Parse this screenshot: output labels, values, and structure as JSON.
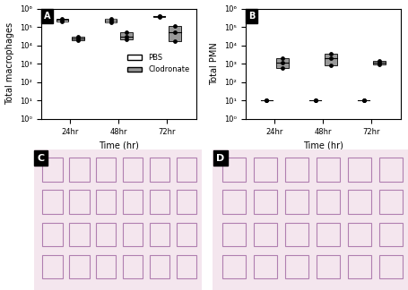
{
  "chart_data": [
    {
      "type": "box",
      "panel_label": "A",
      "x_label": "Time (hr)",
      "y_label": "Total macrophages",
      "categories": [
        "24hr",
        "48hr",
        "72hr"
      ],
      "series": [
        {
          "name": "PBS",
          "color": "#ffffff",
          "values": [
            [
              200000,
              240000,
              270000
            ],
            [
              190000,
              230000,
              280000
            ],
            [
              350000,
              380000,
              400000
            ]
          ]
        },
        {
          "name": "Clodronate",
          "color": "#999999",
          "values": [
            [
              20000,
              25000,
              30000
            ],
            [
              22000,
              30000,
              50000
            ],
            [
              18000,
              55000,
              120000
            ]
          ]
        }
      ],
      "log": "y",
      "ylim": [
        1,
        1000000
      ],
      "yticks": [
        {
          "value": 1,
          "label": "10⁰"
        },
        {
          "value": 10,
          "label": "10¹"
        },
        {
          "value": 100,
          "label": "10²"
        },
        {
          "value": 1000,
          "label": "10³"
        },
        {
          "value": 10000,
          "label": "10⁴"
        },
        {
          "value": 100000,
          "label": "10⁵"
        },
        {
          "value": 1000000,
          "label": "10⁶"
        }
      ],
      "grid": false,
      "legend": "center right"
    },
    {
      "type": "box",
      "panel_label": "B",
      "x_label": "Time (hr)",
      "y_label": "Total PMN",
      "categories": [
        "24hr",
        "48hr",
        "72hr"
      ],
      "series": [
        {
          "color": "#ffffff",
          "values": [
            [
              10,
              10,
              10
            ],
            [
              10,
              10,
              10
            ],
            [
              10,
              10,
              10
            ]
          ]
        },
        {
          "color": "#999999",
          "values": [
            [
              600,
              1200,
              2000
            ],
            [
              800,
              2000,
              3500
            ],
            [
              900,
              1100,
              1500
            ]
          ]
        }
      ],
      "log": "y",
      "ylim": [
        1,
        1000000
      ],
      "yticks": [
        {
          "value": 1,
          "label": "10⁰"
        },
        {
          "value": 10,
          "label": "10¹"
        },
        {
          "value": 100,
          "label": "10²"
        },
        {
          "value": 1000,
          "label": "10³"
        },
        {
          "value": 10000,
          "label": "10⁴"
        },
        {
          "value": 100000,
          "label": "10⁵"
        },
        {
          "value": 1000000,
          "label": "10⁶"
        }
      ],
      "grid": false
    }
  ],
  "images": [
    {
      "panel_label": "C"
    },
    {
      "panel_label": "D"
    }
  ]
}
